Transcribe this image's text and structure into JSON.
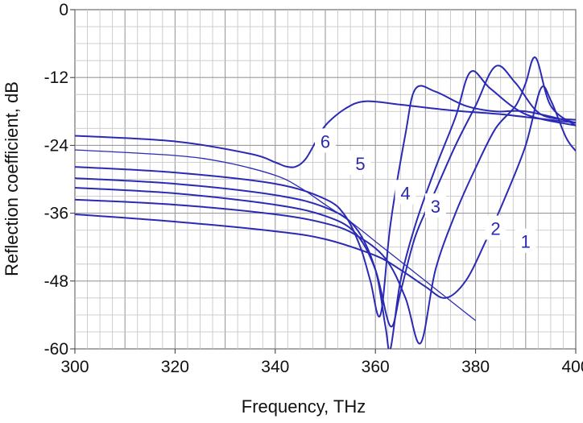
{
  "chart_data": {
    "type": "line",
    "xlabel": "Frequency, THz",
    "ylabel": "Reflection coefficient, dB",
    "xlim": [
      300,
      400
    ],
    "ylim": [
      -60,
      0
    ],
    "x_ticks": [
      "300",
      "320",
      "340",
      "360",
      "380",
      "400"
    ],
    "y_ticks": [
      "0",
      "-12",
      "-24",
      "-36",
      "-48",
      "-60"
    ],
    "grid": true,
    "line_color": "#2a2ab4",
    "series": [
      {
        "name": "1",
        "x": [
          300,
          320,
          340,
          350,
          360,
          365,
          370,
          374,
          378,
          382,
          386,
          390,
          393,
          395,
          398,
          400
        ],
        "y": [
          -36.2,
          -37.5,
          -39.2,
          -40.6,
          -43.5,
          -46.0,
          -49.0,
          -51.0,
          -48.0,
          -41.0,
          -33.0,
          -24.0,
          -14.0,
          -16.0,
          -22.5,
          -25.0
        ]
      },
      {
        "name": "2",
        "x": [
          300,
          320,
          340,
          350,
          356,
          362,
          366,
          369,
          372,
          376,
          380,
          384,
          388,
          390,
          392,
          395,
          400
        ],
        "y": [
          -33.6,
          -34.5,
          -36.2,
          -37.8,
          -39.8,
          -44.0,
          -51.0,
          -59.0,
          -46.0,
          -36.0,
          -28.0,
          -21.0,
          -17.0,
          -13.0,
          -8.5,
          -17.0,
          -20.5
        ]
      },
      {
        "name": "3",
        "x": [
          300,
          320,
          340,
          350,
          356,
          360,
          363,
          365,
          368,
          372,
          376,
          380,
          384,
          388,
          393,
          400
        ],
        "y": [
          -31.5,
          -32.5,
          -34.5,
          -36.5,
          -39.5,
          -46.0,
          -56.0,
          -50.0,
          -40.0,
          -32.0,
          -24.0,
          -17.0,
          -10.0,
          -13.0,
          -18.5,
          -19.5
        ]
      },
      {
        "name": "4",
        "x": [
          300,
          320,
          340,
          350,
          356,
          360,
          362,
          363,
          365,
          368,
          372,
          376,
          379,
          383,
          390,
          400
        ],
        "y": [
          -29.8,
          -30.8,
          -32.8,
          -35.0,
          -38.5,
          -46.0,
          -56.0,
          -60.0,
          -48.0,
          -38.0,
          -28.0,
          -19.0,
          -11.0,
          -14.0,
          -18.5,
          -20.5
        ]
      },
      {
        "name": "5",
        "x": [
          300,
          320,
          340,
          350,
          354,
          357,
          359,
          361,
          363,
          366,
          368,
          372,
          378,
          384,
          390,
          400
        ],
        "y": [
          -27.8,
          -28.8,
          -30.8,
          -33.5,
          -36.5,
          -42.0,
          -48.0,
          -54.0,
          -38.0,
          -22.0,
          -14.0,
          -14.5,
          -17.0,
          -18.0,
          -18.0,
          -20.0
        ]
      },
      {
        "name": "6",
        "x": [
          300,
          320,
          335,
          340,
          342,
          344,
          346,
          348,
          350,
          354,
          358,
          365,
          375,
          385,
          393,
          400
        ],
        "y": [
          -22.3,
          -23.3,
          -25.5,
          -27.0,
          -27.7,
          -27.8,
          -26.5,
          -23.5,
          -20.5,
          -17.5,
          -16.2,
          -16.8,
          -17.8,
          -18.5,
          -19.3,
          -20.0
        ]
      },
      {
        "name": "",
        "x": [
          300,
          320,
          330,
          340,
          345,
          350,
          355,
          360,
          365,
          370,
          375,
          380
        ],
        "y": [
          -24.8,
          -25.8,
          -27.0,
          -29.3,
          -31.5,
          -34.5,
          -37.5,
          -41.0,
          -44.5,
          -48.0,
          -51.5,
          -55.0
        ]
      }
    ],
    "curve_labels": [
      {
        "text": "1",
        "x": 390,
        "y": -41.0
      },
      {
        "text": "2",
        "x": 384,
        "y": -38.7
      },
      {
        "text": "3",
        "x": 372,
        "y": -34.8
      },
      {
        "text": "4",
        "x": 366,
        "y": -32.4
      },
      {
        "text": "5",
        "x": 357,
        "y": -27.2
      },
      {
        "text": "6",
        "x": 350,
        "y": -23.3
      }
    ]
  }
}
